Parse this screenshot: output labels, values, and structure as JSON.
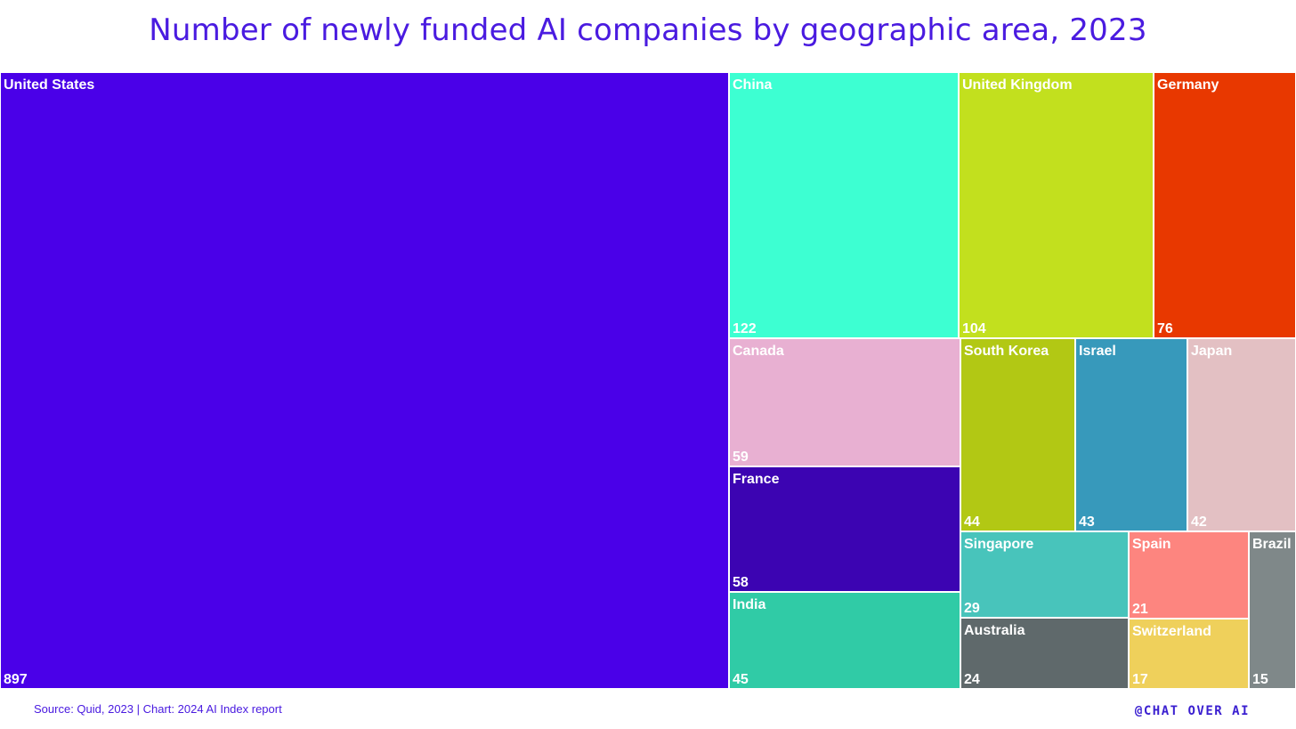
{
  "title": "Number of newly funded AI companies by geographic area, 2023",
  "source": "Source: Quid, 2023 | Chart: 2024 AI Index report",
  "brand": "@CHAT OVER AI",
  "chart_data": {
    "type": "treemap",
    "title": "Number of newly funded AI companies by geographic area, 2023",
    "items": [
      {
        "name": "United States",
        "value": 897,
        "color": "#4a00e8"
      },
      {
        "name": "China",
        "value": 122,
        "color": "#3dffd2"
      },
      {
        "name": "United Kingdom",
        "value": 104,
        "color": "#c2e01e"
      },
      {
        "name": "Germany",
        "value": 76,
        "color": "#e83800"
      },
      {
        "name": "Canada",
        "value": 59,
        "color": "#e8b0d2"
      },
      {
        "name": "France",
        "value": 58,
        "color": "#3c04b2"
      },
      {
        "name": "India",
        "value": 45,
        "color": "#30cba6"
      },
      {
        "name": "South Korea",
        "value": 44,
        "color": "#b2c814"
      },
      {
        "name": "Israel",
        "value": 43,
        "color": "#3799bb"
      },
      {
        "name": "Japan",
        "value": 42,
        "color": "#e3c0c3"
      },
      {
        "name": "Singapore",
        "value": 29,
        "color": "#48c4bb"
      },
      {
        "name": "Australia",
        "value": 24,
        "color": "#5f696b"
      },
      {
        "name": "Spain",
        "value": 21,
        "color": "#fd857f"
      },
      {
        "name": "Switzerland",
        "value": 17,
        "color": "#efd05b"
      },
      {
        "name": "Brazil",
        "value": 15,
        "color": "#7f8889"
      }
    ]
  }
}
